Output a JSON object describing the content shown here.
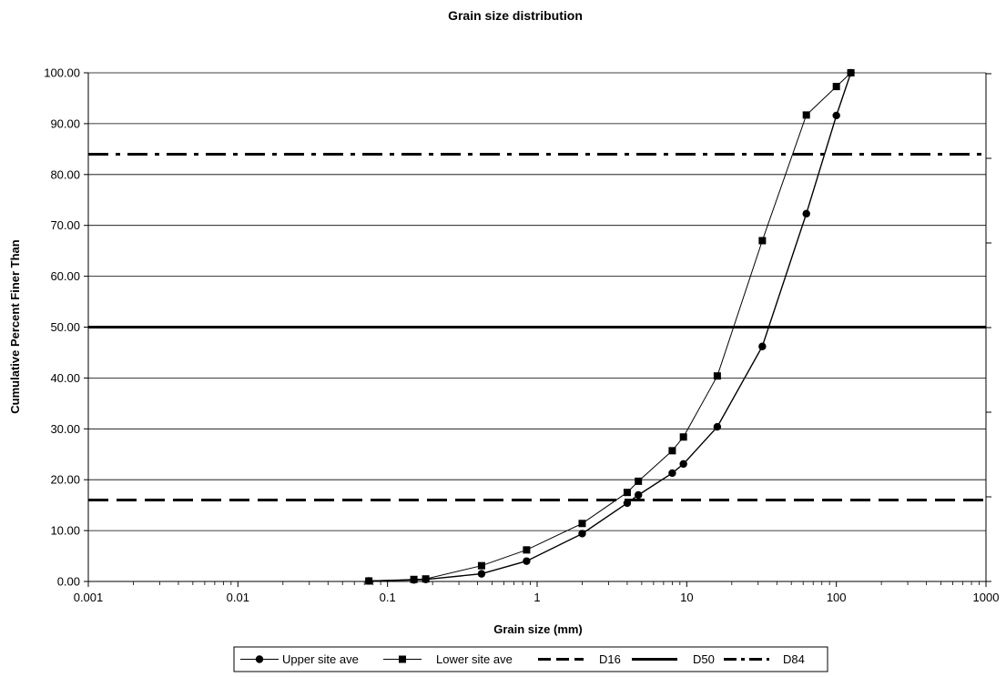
{
  "chart_data": {
    "type": "line",
    "title": "Grain size distribution",
    "xlabel": "Grain size (mm)",
    "ylabel": "Cumulative Percent Finer Than",
    "x_scale": "log",
    "xlim": [
      0.001,
      1000
    ],
    "ylim": [
      0,
      100
    ],
    "x_ticks": [
      "0.001",
      "0.01",
      "0.1",
      "1",
      "10",
      "100",
      "1000"
    ],
    "y_ticks": [
      "0.00",
      "10.00",
      "20.00",
      "30.00",
      "40.00",
      "50.00",
      "60.00",
      "70.00",
      "80.00",
      "90.00",
      "100.00"
    ],
    "grid": "horizontal",
    "legend_position": "bottom",
    "series": [
      {
        "name": "Upper site ave",
        "marker": "circle",
        "line_style": "solid",
        "color": "#000000",
        "x": [
          0.075,
          0.15,
          0.18,
          0.425,
          0.85,
          2,
          4,
          4.75,
          8,
          9.5,
          16,
          32,
          63,
          100,
          125
        ],
        "y": [
          0.1,
          0.3,
          0.4,
          1.5,
          4.0,
          9.4,
          15.4,
          17.0,
          21.3,
          23.1,
          30.4,
          46.2,
          72.3,
          91.6,
          100.0
        ]
      },
      {
        "name": "Lower site ave",
        "marker": "square",
        "line_style": "solid",
        "color": "#000000",
        "x": [
          0.075,
          0.15,
          0.18,
          0.425,
          0.85,
          2,
          4,
          4.75,
          8,
          9.5,
          16,
          32,
          63,
          100,
          125
        ],
        "y": [
          0.1,
          0.4,
          0.5,
          3.1,
          6.2,
          11.4,
          17.5,
          19.7,
          25.7,
          28.4,
          40.4,
          67.0,
          91.7,
          97.3,
          100.0
        ]
      },
      {
        "name": "D16",
        "line_style": "dash",
        "color": "#000000",
        "y_constant": 16
      },
      {
        "name": "D50",
        "line_style": "solid",
        "color": "#000000",
        "y_constant": 50
      },
      {
        "name": "D84",
        "line_style": "dashdot",
        "color": "#000000",
        "y_constant": 84
      }
    ]
  }
}
